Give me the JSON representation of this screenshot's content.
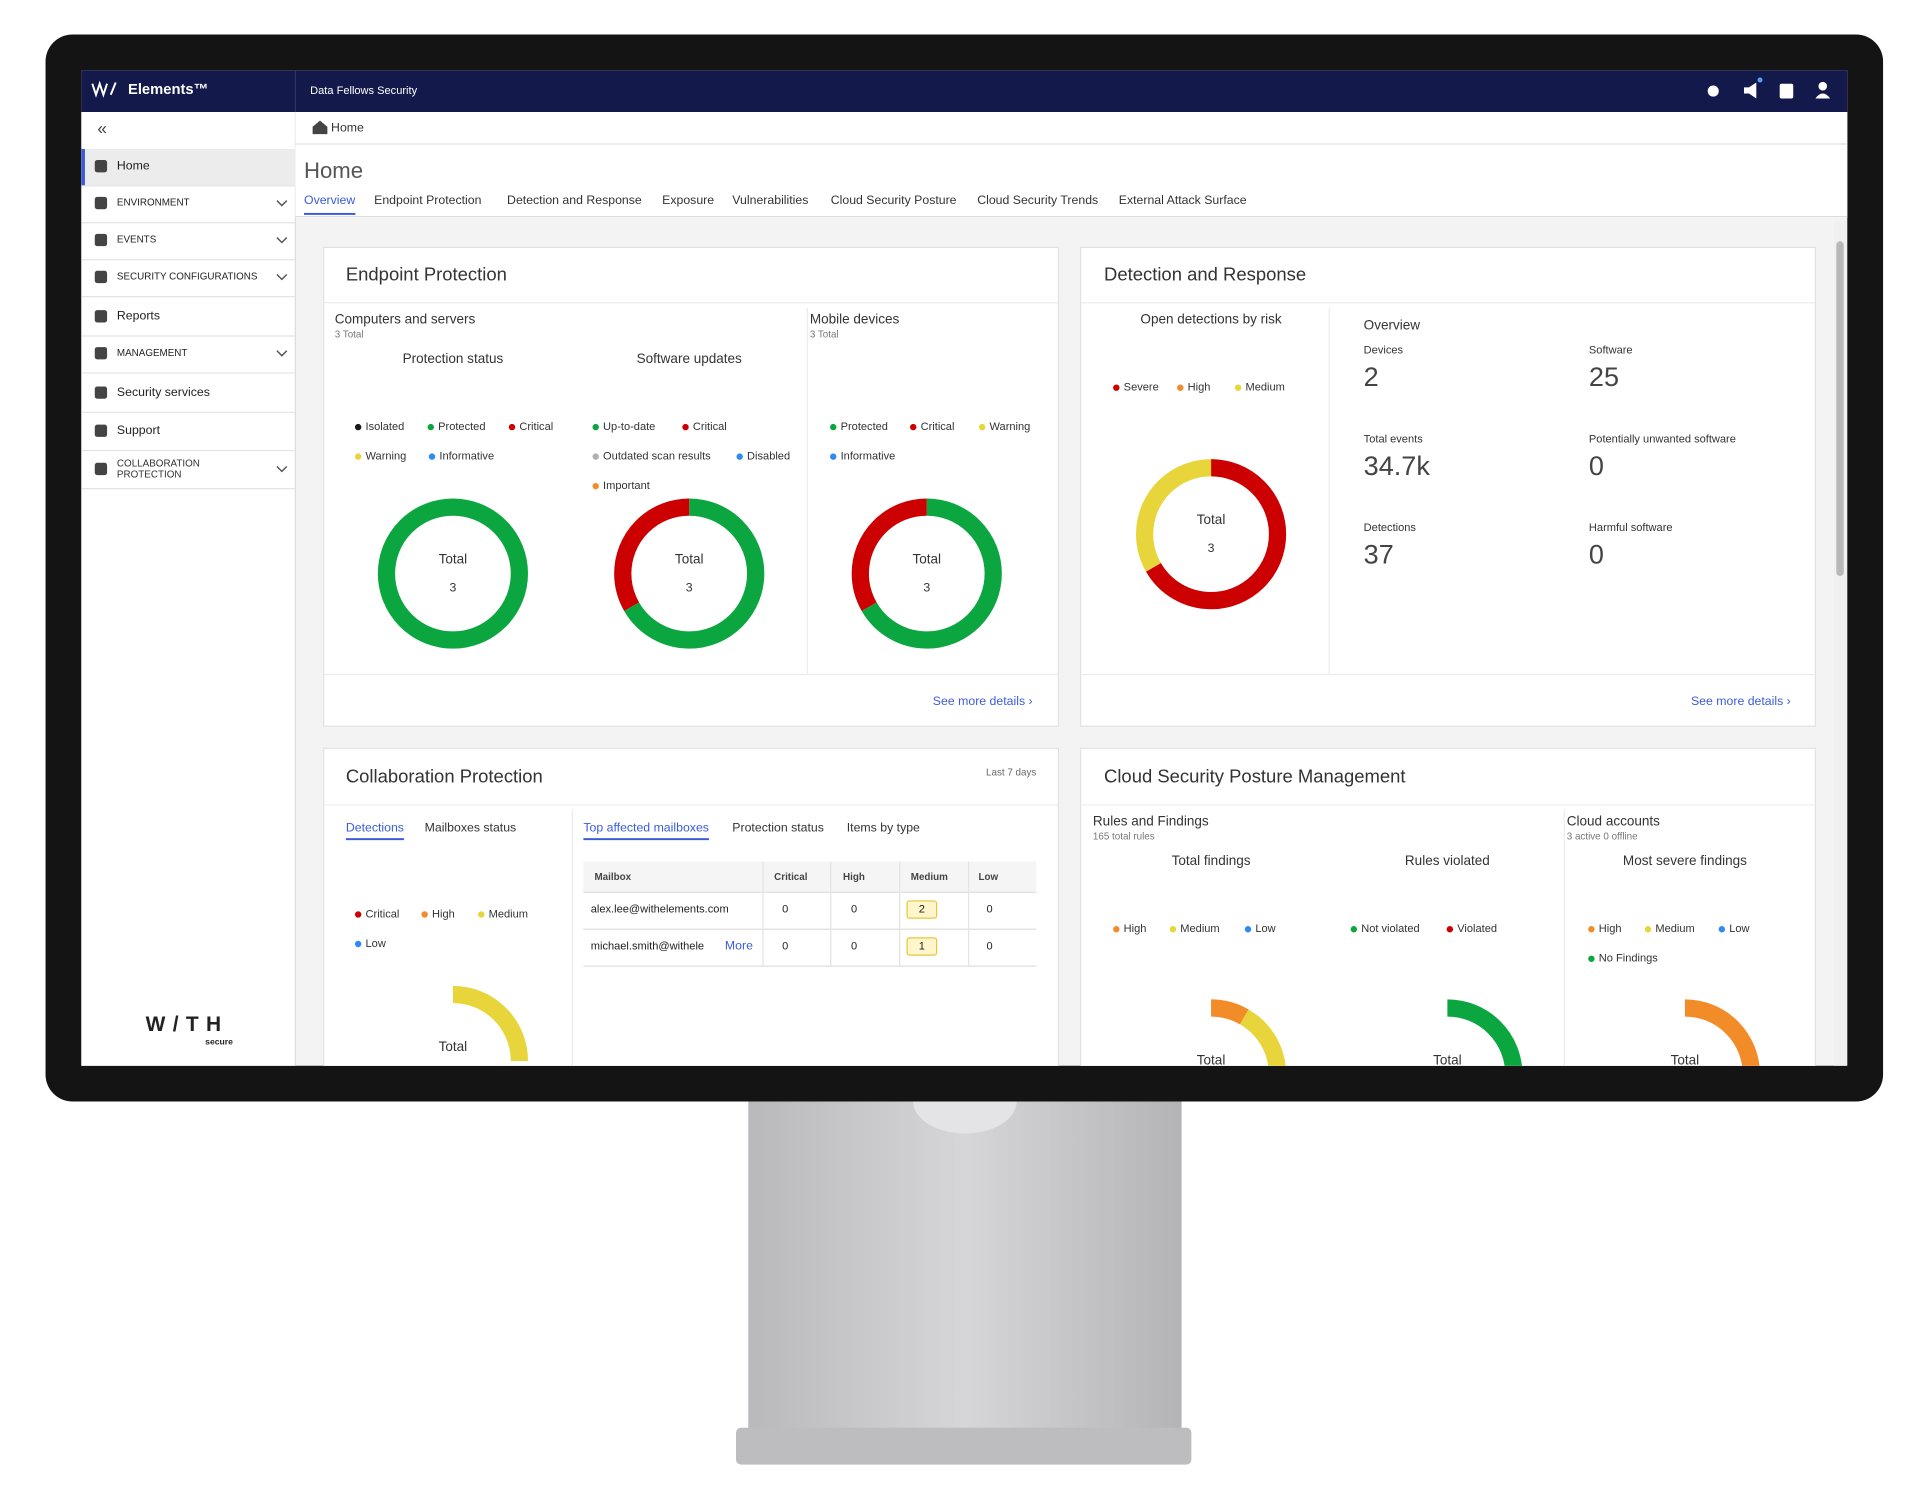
{
  "topbar": {
    "brand": "Elements™",
    "org": "Data Fellows Security"
  },
  "sidebar": {
    "collapse": "«",
    "items": [
      "Home",
      "ENVIRONMENT",
      "EVENTS",
      "SECURITY CONFIGURATIONS",
      "Reports",
      "MANAGEMENT",
      "Security services",
      "Support",
      "COLLABORATION PROTECTION"
    ],
    "logo": "W/TH",
    "logo_sub": "secure"
  },
  "breadcrumb": "Home",
  "page": {
    "title": "Home",
    "tabs": [
      "Overview",
      "Endpoint Protection",
      "Detection and Response",
      "Exposure",
      "Vulnerabilities",
      "Cloud Security Posture",
      "Cloud Security Trends",
      "External Attack Surface"
    ]
  },
  "endpoint": {
    "title": "Endpoint Protection",
    "computers": {
      "title": "Computers and servers",
      "subtitle": "3 Total"
    },
    "mobile": {
      "title": "Mobile devices",
      "subtitle": "3 Total"
    },
    "charts": [
      {
        "title": "Protection status",
        "center_label": "Total",
        "total": 3,
        "legend": [
          {
            "name": "Isolated",
            "color": "#1a1a1a",
            "value": 0
          },
          {
            "name": "Protected",
            "color": "#0ca640",
            "value": 3
          },
          {
            "name": "Critical",
            "color": "#cc0000",
            "value": 0
          },
          {
            "name": "Warning",
            "color": "#e8d53c",
            "value": 0
          },
          {
            "name": "Informative",
            "color": "#2e8cf0",
            "value": 0
          }
        ]
      },
      {
        "title": "Software updates",
        "center_label": "Total",
        "total": 3,
        "legend": [
          {
            "name": "Up-to-date",
            "color": "#0ca640",
            "value": 2
          },
          {
            "name": "Critical",
            "color": "#cc0000",
            "value": 1
          },
          {
            "name": "Outdated scan results",
            "color": "#b0b0b0",
            "value": 0
          },
          {
            "name": "Disabled",
            "color": "#2e8cf0",
            "value": 0
          },
          {
            "name": "Important",
            "color": "#f28c28",
            "value": 0
          }
        ]
      },
      {
        "center_label": "Total",
        "total": 3,
        "legend": [
          {
            "name": "Protected",
            "color": "#0ca640",
            "value": 2
          },
          {
            "name": "Critical",
            "color": "#cc0000",
            "value": 1
          },
          {
            "name": "Warning",
            "color": "#e8d53c",
            "value": 0
          },
          {
            "name": "Informative",
            "color": "#2e8cf0",
            "value": 0
          }
        ]
      }
    ],
    "link": "See more details ›"
  },
  "detection": {
    "title": "Detection and Response",
    "chart": {
      "title": "Open detections by risk",
      "center_label": "Total",
      "total": 3,
      "legend": [
        {
          "name": "Severe",
          "color": "#cc0000",
          "value": 2
        },
        {
          "name": "High",
          "color": "#f28c28",
          "value": 0
        },
        {
          "name": "Medium",
          "color": "#e8d53c",
          "value": 1
        }
      ]
    },
    "overview": {
      "title": "Overview",
      "stats": [
        {
          "label": "Devices",
          "value": 2
        },
        {
          "label": "Software",
          "value": 25
        },
        {
          "label": "Total events",
          "value": "34.7k"
        },
        {
          "label": "Potentially unwanted software",
          "value": 0
        },
        {
          "label": "Detections",
          "value": 37
        },
        {
          "label": "Harmful software",
          "value": 0
        }
      ]
    },
    "link": "See more details ›"
  },
  "collaboration": {
    "title": "Collaboration Protection",
    "period": "Last 7 days",
    "left_tabs": [
      "Detections",
      "Mailboxes status"
    ],
    "right_tabs": [
      "Top affected mailboxes",
      "Protection status",
      "Items by type"
    ],
    "chart": {
      "center_label": "Total",
      "legend": [
        {
          "name": "Critical",
          "color": "#cc0000"
        },
        {
          "name": "High",
          "color": "#f28c28"
        },
        {
          "name": "Medium",
          "color": "#e8d53c"
        },
        {
          "name": "Low",
          "color": "#2e8cf0"
        }
      ]
    },
    "table": {
      "headers": [
        "Mailbox",
        "Critical",
        "High",
        "Medium",
        "Low"
      ],
      "rows": [
        [
          "alex.lee@withelements.com",
          0,
          0,
          2,
          0
        ],
        [
          "michael.smith@withele",
          0,
          0,
          1,
          0
        ]
      ],
      "more": "More"
    }
  },
  "cspm": {
    "title": "Cloud Security Posture Management",
    "rules": {
      "title": "Rules and Findings",
      "subtitle": "165 total rules"
    },
    "accounts": {
      "title": "Cloud accounts",
      "subtitle": "3 active 0 offline"
    },
    "charts": [
      {
        "title": "Total findings",
        "center_label": "Total",
        "legend": [
          {
            "name": "High",
            "color": "#f28c28"
          },
          {
            "name": "Medium",
            "color": "#e8d53c"
          },
          {
            "name": "Low",
            "color": "#2e8cf0"
          }
        ]
      },
      {
        "title": "Rules violated",
        "center_label": "Total",
        "legend": [
          {
            "name": "Not violated",
            "color": "#0ca640"
          },
          {
            "name": "Violated",
            "color": "#cc0000"
          }
        ]
      },
      {
        "title": "Most severe findings",
        "center_label": "Total",
        "legend": [
          {
            "name": "High",
            "color": "#f28c28"
          },
          {
            "name": "Medium",
            "color": "#e8d53c"
          },
          {
            "name": "Low",
            "color": "#2e8cf0"
          },
          {
            "name": "No Findings",
            "color": "#0ca640"
          }
        ]
      }
    ]
  }
}
